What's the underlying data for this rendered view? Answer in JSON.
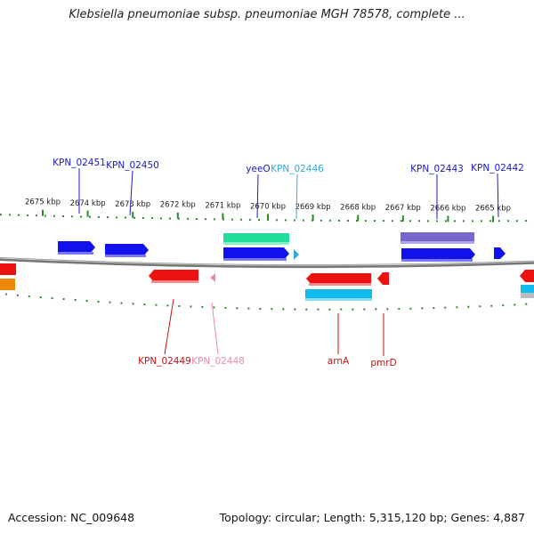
{
  "title": "Klebsiella pneumoniae subsp. pneumoniae MGH 78578, complete ...",
  "footer": {
    "accession": "Accession: NC_009648",
    "summary": "Topology: circular; Length: 5,315,120 bp; Genes: 4,887"
  },
  "ticks": [
    {
      "kbp": 2675,
      "label": "2675 kbp"
    },
    {
      "kbp": 2674,
      "label": "2674 kbp"
    },
    {
      "kbp": 2673,
      "label": "2673 kbp"
    },
    {
      "kbp": 2672,
      "label": "2672 kbp"
    },
    {
      "kbp": 2671,
      "label": "2671 kbp"
    },
    {
      "kbp": 2670,
      "label": "2670 kbp"
    },
    {
      "kbp": 2669,
      "label": "2669 kbp"
    },
    {
      "kbp": 2668,
      "label": "2668 kbp"
    },
    {
      "kbp": 2667,
      "label": "2667 kbp"
    },
    {
      "kbp": 2666,
      "label": "2666 kbp"
    },
    {
      "kbp": 2665,
      "label": "2665 kbp"
    }
  ],
  "outer_genes": [
    {
      "label": "KPN_02451",
      "color": "#1a1acc"
    },
    {
      "label": "KPN_02450",
      "color": "#1a1acc"
    },
    {
      "label": "yeeO",
      "color": "#1a1acc"
    },
    {
      "label": "KPN_02446",
      "color": "#33aadd"
    },
    {
      "label": "KPN_02443",
      "color": "#1a1acc"
    },
    {
      "label": "KPN_02442",
      "color": "#1a1acc"
    }
  ],
  "inner_genes": [
    {
      "label": "KPN_02449",
      "color": "#cc1111"
    },
    {
      "label": "KPN_02448",
      "color": "#ee88aa"
    },
    {
      "label": "arnA",
      "color": "#cc1111"
    },
    {
      "label": "pmrD",
      "color": "#cc1111"
    }
  ],
  "colors": {
    "tick": "#2a8a2a",
    "backbone": "#888888",
    "forward_gene": "#1111ee",
    "reverse_gene": "#ee1111",
    "cog_green": "#22dd99",
    "cog_purple": "#7766cc",
    "cog_cyan": "#11bbee",
    "cog_orange": "#ee8800"
  }
}
